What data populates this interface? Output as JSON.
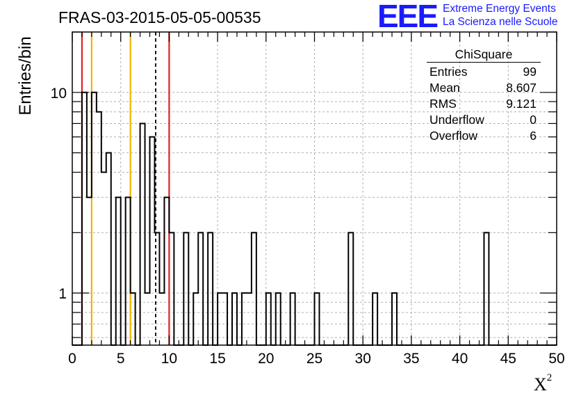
{
  "title": "FRAS-03-2015-05-05-00535",
  "logo": {
    "mark": "EEE",
    "line1": "Extreme Energy Events",
    "line2": "La Scienza nelle Scuole",
    "color": "#1a1aff"
  },
  "stats": {
    "name": "ChiSquare",
    "rows": [
      {
        "label": "Entries",
        "value": "99"
      },
      {
        "label": "Mean",
        "value": "8.607"
      },
      {
        "label": "RMS",
        "value": "9.121"
      },
      {
        "label": "Underflow",
        "value": "0"
      },
      {
        "label": "Overflow",
        "value": "6"
      }
    ]
  },
  "chart_data": {
    "type": "bar",
    "histogram": true,
    "xlabel": "X²",
    "ylabel": "Entries/bin",
    "xlim": [
      0,
      50
    ],
    "ylim": [
      0.55,
      20
    ],
    "yscale": "log",
    "grid": true,
    "bin_width": 0.5,
    "xticks": [
      0,
      5,
      10,
      15,
      20,
      25,
      30,
      35,
      40,
      45,
      50
    ],
    "yticks": [
      {
        "value": 1,
        "label": "1"
      },
      {
        "value": 10,
        "label": "10"
      }
    ],
    "bins": [
      {
        "x": 0.5,
        "y": 0
      },
      {
        "x": 1.0,
        "y": 10
      },
      {
        "x": 1.5,
        "y": 3
      },
      {
        "x": 2.0,
        "y": 10
      },
      {
        "x": 2.5,
        "y": 8
      },
      {
        "x": 3.0,
        "y": 4
      },
      {
        "x": 3.5,
        "y": 5
      },
      {
        "x": 4.0,
        "y": 0
      },
      {
        "x": 4.5,
        "y": 3
      },
      {
        "x": 5.0,
        "y": 0
      },
      {
        "x": 5.5,
        "y": 3
      },
      {
        "x": 6.0,
        "y": 1
      },
      {
        "x": 6.5,
        "y": 0
      },
      {
        "x": 7.0,
        "y": 7
      },
      {
        "x": 7.5,
        "y": 1
      },
      {
        "x": 8.0,
        "y": 6
      },
      {
        "x": 8.5,
        "y": 2
      },
      {
        "x": 9.0,
        "y": 1
      },
      {
        "x": 9.5,
        "y": 3
      },
      {
        "x": 10.0,
        "y": 2
      },
      {
        "x": 10.5,
        "y": 0
      },
      {
        "x": 11.0,
        "y": 0
      },
      {
        "x": 11.5,
        "y": 2
      },
      {
        "x": 12.0,
        "y": 0
      },
      {
        "x": 12.5,
        "y": 1
      },
      {
        "x": 13.0,
        "y": 2
      },
      {
        "x": 13.5,
        "y": 0
      },
      {
        "x": 14.0,
        "y": 2
      },
      {
        "x": 14.5,
        "y": 0
      },
      {
        "x": 15.0,
        "y": 1
      },
      {
        "x": 15.5,
        "y": 1
      },
      {
        "x": 16.0,
        "y": 0
      },
      {
        "x": 16.5,
        "y": 1
      },
      {
        "x": 17.0,
        "y": 0
      },
      {
        "x": 17.5,
        "y": 1
      },
      {
        "x": 18.0,
        "y": 1
      },
      {
        "x": 18.5,
        "y": 2
      },
      {
        "x": 19.0,
        "y": 0
      },
      {
        "x": 19.5,
        "y": 0
      },
      {
        "x": 20.0,
        "y": 1
      },
      {
        "x": 20.5,
        "y": 0
      },
      {
        "x": 21.0,
        "y": 1
      },
      {
        "x": 21.5,
        "y": 0
      },
      {
        "x": 22.0,
        "y": 0
      },
      {
        "x": 22.5,
        "y": 1
      },
      {
        "x": 25.0,
        "y": 1
      },
      {
        "x": 28.5,
        "y": 2
      },
      {
        "x": 31.0,
        "y": 1
      },
      {
        "x": 33.0,
        "y": 1
      },
      {
        "x": 42.5,
        "y": 2
      }
    ],
    "vertical_lines": [
      {
        "x": 1.0,
        "color": "#e02020",
        "style": "solid"
      },
      {
        "x": 2.0,
        "color": "#f0b400",
        "style": "solid"
      },
      {
        "x": 6.0,
        "color": "#f0b400",
        "style": "solid"
      },
      {
        "x": 8.607,
        "color": "#000000",
        "style": "dashed"
      },
      {
        "x": 10.0,
        "color": "#e02020",
        "style": "solid"
      }
    ]
  }
}
